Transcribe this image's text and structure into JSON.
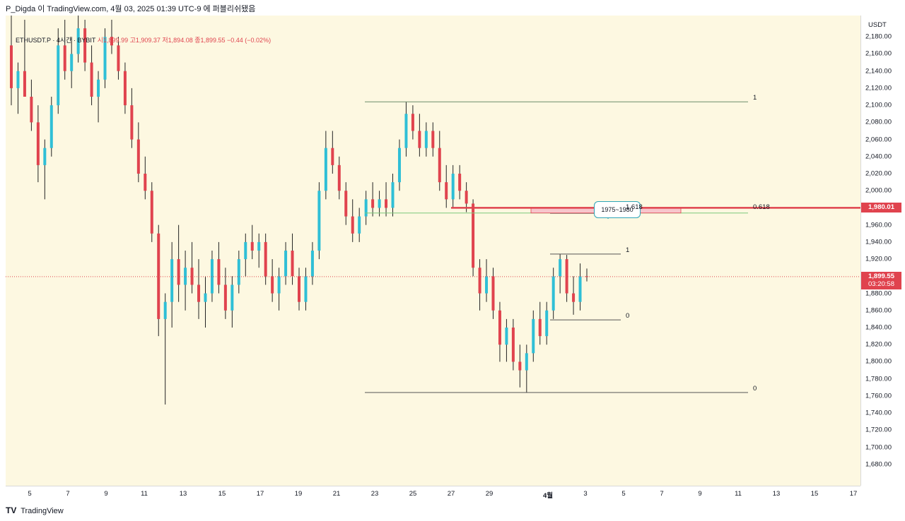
{
  "topbar": {
    "publish_info": "P_Digda 이 TradingView.com, 4월 03, 2025 01:39 UTC-9 에 퍼블리쉬됐음"
  },
  "legend": {
    "symbol": "ETHUSDT.P · 4시간 · BYBIT",
    "ohlc": "시1,899.99  고1,909.37  저1,894.08  종1,899.55  −0.44 (−0.02%)"
  },
  "footer": {
    "brand": "TradingView"
  },
  "colors": {
    "up": "#2fbfd6",
    "down": "#e0434e",
    "bg": "#fdf8e1",
    "level": "#e0434e",
    "ref": "#7a7a7a",
    "green": "#7dc87a"
  },
  "chart_data": {
    "type": "candlestick",
    "symbol": "ETHUSDT.P",
    "interval": "4H",
    "exchange": "BYBIT",
    "currency": "USDT",
    "ylim": [
      1660,
      2200
    ],
    "y_ticks": [
      "2,180.00",
      "2,160.00",
      "2,140.00",
      "2,120.00",
      "2,100.00",
      "2,080.00",
      "2,060.00",
      "2,040.00",
      "2,020.00",
      "2,000.00",
      "1,980.00",
      "1,960.00",
      "1,940.00",
      "1,920.00",
      "1,900.00",
      "1,880.00",
      "1,860.00",
      "1,840.00",
      "1,820.00",
      "1,800.00",
      "1,780.00",
      "1,760.00",
      "1,740.00",
      "1,720.00",
      "1,700.00",
      "1,680.00"
    ],
    "x_ticks": [
      "5",
      "7",
      "9",
      "11",
      "13",
      "15",
      "17",
      "19",
      "21",
      "23",
      "25",
      "27",
      "29",
      "4월",
      "3",
      "5",
      "7",
      "9",
      "11",
      "13",
      "15",
      "17"
    ],
    "last_price": {
      "value": 1899.55,
      "label": "1,899.55",
      "countdown": "03:20:58"
    },
    "level_price": {
      "value": 1980.01,
      "label": "1,980.01"
    },
    "annotations": {
      "callout": "1975~1980",
      "fib_large": {
        "high": 2104,
        "low": 1764,
        "level_0618": 1974,
        "labels": [
          "1",
          "0.618",
          "0"
        ]
      },
      "fib_small": {
        "high": 1926,
        "low": 1849,
        "ext_1618": 1974,
        "labels": [
          "1",
          "1.618",
          "0"
        ]
      },
      "green_line": 1974
    },
    "candles_ohlc_summary": "Mar 3–Apr 3, 2025 4H candles; high ~2,180+ early March, low ~1,750 on Mar 11, range 1,880–2,100 mid-March, drop to ~1,764 Mar 31, rebound to ~1,926 Apr 2, last 1,899.55",
    "candles": [
      [
        2170,
        2210,
        2100,
        2120
      ],
      [
        2120,
        2150,
        2090,
        2140
      ],
      [
        2140,
        2200,
        2110,
        2110
      ],
      [
        2110,
        2130,
        2070,
        2080
      ],
      [
        2080,
        2100,
        2010,
        2030
      ],
      [
        2030,
        2060,
        1990,
        2050
      ],
      [
        2050,
        2110,
        2040,
        2100
      ],
      [
        2100,
        2190,
        2090,
        2170
      ],
      [
        2170,
        2200,
        2130,
        2140
      ],
      [
        2140,
        2180,
        2120,
        2160
      ],
      [
        2160,
        2210,
        2150,
        2190
      ],
      [
        2190,
        2200,
        2140,
        2150
      ],
      [
        2150,
        2170,
        2100,
        2110
      ],
      [
        2110,
        2140,
        2080,
        2130
      ],
      [
        2130,
        2190,
        2120,
        2180
      ],
      [
        2180,
        2200,
        2160,
        2170
      ],
      [
        2170,
        2180,
        2130,
        2140
      ],
      [
        2140,
        2150,
        2090,
        2100
      ],
      [
        2100,
        2120,
        2050,
        2060
      ],
      [
        2060,
        2080,
        2010,
        2020
      ],
      [
        2020,
        2040,
        1990,
        2000
      ],
      [
        2000,
        2010,
        1940,
        1950
      ],
      [
        1950,
        1960,
        1830,
        1850
      ],
      [
        1850,
        1880,
        1750,
        1870
      ],
      [
        1870,
        1940,
        1840,
        1920
      ],
      [
        1920,
        1960,
        1870,
        1890
      ],
      [
        1890,
        1930,
        1860,
        1910
      ],
      [
        1910,
        1940,
        1880,
        1890
      ],
      [
        1890,
        1920,
        1850,
        1870
      ],
      [
        1870,
        1900,
        1840,
        1880
      ],
      [
        1880,
        1930,
        1870,
        1920
      ],
      [
        1920,
        1940,
        1880,
        1890
      ],
      [
        1890,
        1910,
        1850,
        1860
      ],
      [
        1860,
        1900,
        1840,
        1890
      ],
      [
        1890,
        1930,
        1880,
        1920
      ],
      [
        1920,
        1950,
        1900,
        1940
      ],
      [
        1940,
        1960,
        1920,
        1930
      ],
      [
        1930,
        1950,
        1910,
        1940
      ],
      [
        1940,
        1950,
        1890,
        1900
      ],
      [
        1900,
        1920,
        1870,
        1880
      ],
      [
        1880,
        1910,
        1860,
        1900
      ],
      [
        1900,
        1940,
        1890,
        1930
      ],
      [
        1930,
        1950,
        1890,
        1900
      ],
      [
        1900,
        1910,
        1860,
        1870
      ],
      [
        1870,
        1910,
        1860,
        1900
      ],
      [
        1900,
        1940,
        1890,
        1930
      ],
      [
        1930,
        2010,
        1920,
        2000
      ],
      [
        2000,
        2070,
        1990,
        2050
      ],
      [
        2050,
        2070,
        2020,
        2030
      ],
      [
        2030,
        2040,
        1990,
        2000
      ],
      [
        2000,
        2010,
        1960,
        1970
      ],
      [
        1970,
        1990,
        1940,
        1950
      ],
      [
        1950,
        1980,
        1940,
        1970
      ],
      [
        1970,
        2000,
        1960,
        1990
      ],
      [
        1990,
        2010,
        1970,
        1980
      ],
      [
        1980,
        2000,
        1970,
        1990
      ],
      [
        1990,
        2010,
        1970,
        1980
      ],
      [
        1980,
        2020,
        1970,
        2010
      ],
      [
        2010,
        2060,
        2000,
        2050
      ],
      [
        2050,
        2104,
        2040,
        2090
      ],
      [
        2090,
        2100,
        2060,
        2070
      ],
      [
        2070,
        2090,
        2040,
        2050
      ],
      [
        2050,
        2080,
        2040,
        2070
      ],
      [
        2070,
        2080,
        2040,
        2050
      ],
      [
        2050,
        2070,
        2000,
        2010
      ],
      [
        2010,
        2030,
        1980,
        1990
      ],
      [
        1990,
        2030,
        1980,
        2020
      ],
      [
        2020,
        2030,
        1990,
        2000
      ],
      [
        2000,
        2010,
        1975,
        1985
      ],
      [
        1985,
        1990,
        1900,
        1910
      ],
      [
        1910,
        1920,
        1860,
        1880
      ],
      [
        1880,
        1920,
        1870,
        1900
      ],
      [
        1900,
        1910,
        1850,
        1860
      ],
      [
        1860,
        1870,
        1800,
        1820
      ],
      [
        1820,
        1850,
        1800,
        1840
      ],
      [
        1840,
        1850,
        1790,
        1800
      ],
      [
        1800,
        1820,
        1770,
        1790
      ],
      [
        1790,
        1820,
        1764,
        1810
      ],
      [
        1810,
        1860,
        1800,
        1850
      ],
      [
        1850,
        1870,
        1820,
        1830
      ],
      [
        1830,
        1870,
        1820,
        1860
      ],
      [
        1860,
        1910,
        1850,
        1900
      ],
      [
        1900,
        1926,
        1880,
        1920
      ],
      [
        1920,
        1925,
        1870,
        1880
      ],
      [
        1880,
        1900,
        1855,
        1870
      ],
      [
        1870,
        1915,
        1860,
        1900
      ],
      [
        1900,
        1909,
        1894,
        1899.55
      ]
    ]
  }
}
